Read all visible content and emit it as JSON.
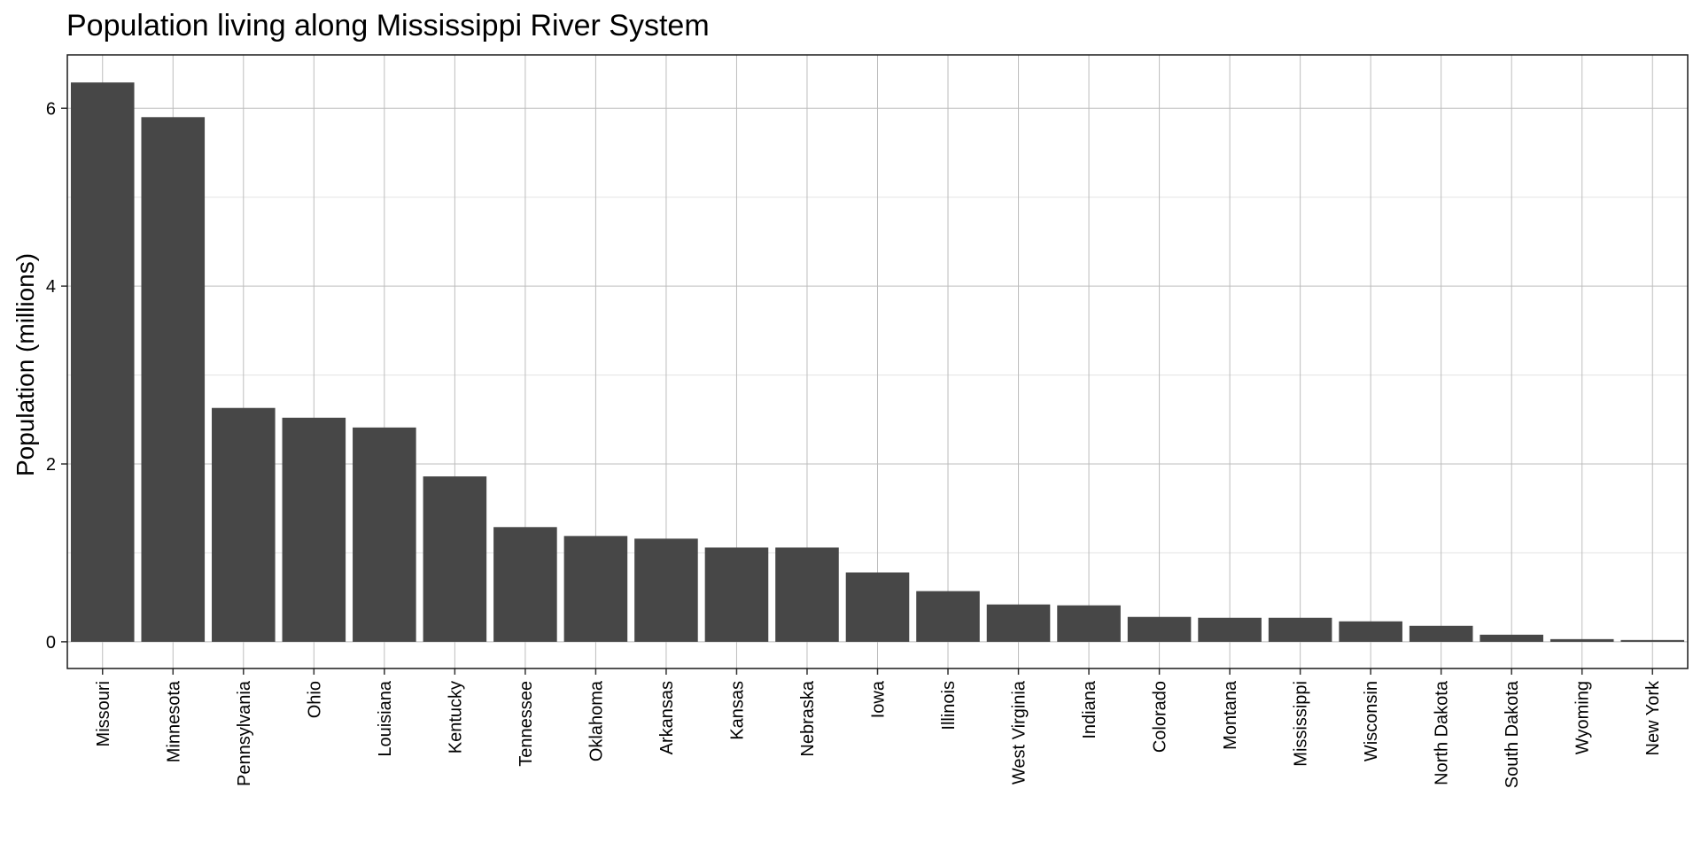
{
  "chart_data": {
    "type": "bar",
    "title": "Population living along Mississippi River System",
    "xlabel": "",
    "ylabel": "Population (millions)",
    "categories": [
      "Missouri",
      "Minnesota",
      "Pennsylvania",
      "Ohio",
      "Louisiana",
      "Kentucky",
      "Tennessee",
      "Oklahoma",
      "Arkansas",
      "Kansas",
      "Nebraska",
      "Iowa",
      "Illinois",
      "West Virginia",
      "Indiana",
      "Colorado",
      "Montana",
      "Mississippi",
      "Wisconsin",
      "North Dakota",
      "South Dakota",
      "Wyoming",
      "New York"
    ],
    "values": [
      6.29,
      5.9,
      2.63,
      2.52,
      2.41,
      1.86,
      1.29,
      1.19,
      1.16,
      1.06,
      1.06,
      0.78,
      0.57,
      0.42,
      0.41,
      0.28,
      0.27,
      0.27,
      0.23,
      0.18,
      0.08,
      0.03,
      0.02
    ],
    "ylim": [
      -0.3,
      6.6
    ],
    "yticks": [
      0,
      2,
      4,
      6
    ],
    "grid": true,
    "bar_color": "#474747"
  }
}
